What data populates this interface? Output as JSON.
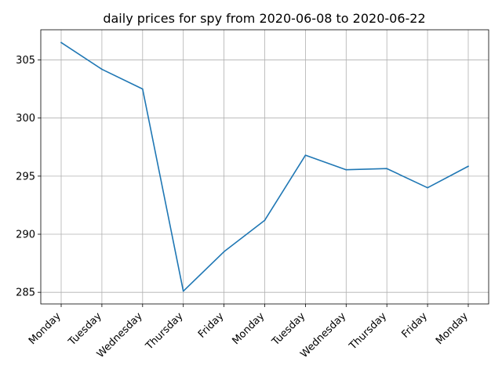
{
  "chart_data": {
    "type": "line",
    "title": "daily prices for spy from 2020-06-08 to 2020-06-22",
    "xlabel": "",
    "ylabel": "",
    "categories": [
      "Monday",
      "Tuesday",
      "Wednesday",
      "Thursday",
      "Friday",
      "Monday",
      "Tuesday",
      "Wednesday",
      "Thursday",
      "Friday",
      "Monday"
    ],
    "series": [
      {
        "values": [
          306.5,
          304.2,
          302.5,
          285.1,
          288.5,
          291.2,
          296.8,
          295.55,
          295.65,
          294.0,
          295.85
        ],
        "color": "#1f77b4"
      }
    ],
    "ylim": [
      284.0,
      307.6
    ],
    "yticks": [
      285,
      290,
      295,
      300,
      305
    ],
    "grid": true,
    "legend": "none"
  }
}
